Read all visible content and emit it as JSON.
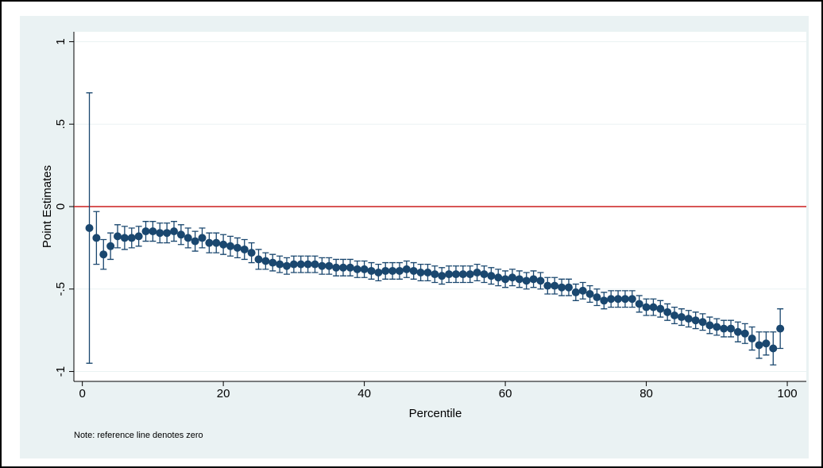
{
  "chart_data": {
    "type": "errorbar-scatter",
    "xlabel": "Percentile",
    "ylabel": "Point Estimates",
    "note": "Note: reference line denotes zero",
    "x": [
      1,
      2,
      3,
      4,
      5,
      6,
      7,
      8,
      9,
      10,
      11,
      12,
      13,
      14,
      15,
      16,
      17,
      18,
      19,
      20,
      21,
      22,
      23,
      24,
      25,
      26,
      27,
      28,
      29,
      30,
      31,
      32,
      33,
      34,
      35,
      36,
      37,
      38,
      39,
      40,
      41,
      42,
      43,
      44,
      45,
      46,
      47,
      48,
      49,
      50,
      51,
      52,
      53,
      54,
      55,
      56,
      57,
      58,
      59,
      60,
      61,
      62,
      63,
      64,
      65,
      66,
      67,
      68,
      69,
      70,
      71,
      72,
      73,
      74,
      75,
      76,
      77,
      78,
      79,
      80,
      81,
      82,
      83,
      84,
      85,
      86,
      87,
      88,
      89,
      90,
      91,
      92,
      93,
      94,
      95,
      96,
      97,
      98,
      99
    ],
    "series": [
      {
        "color": "#1a476f",
        "values": [
          -0.13,
          -0.19,
          -0.29,
          -0.24,
          -0.18,
          -0.19,
          -0.19,
          -0.18,
          -0.15,
          -0.15,
          -0.16,
          -0.16,
          -0.15,
          -0.17,
          -0.19,
          -0.21,
          -0.19,
          -0.22,
          -0.22,
          -0.23,
          -0.24,
          -0.25,
          -0.26,
          -0.28,
          -0.32,
          -0.33,
          -0.34,
          -0.35,
          -0.36,
          -0.35,
          -0.35,
          -0.35,
          -0.35,
          -0.36,
          -0.36,
          -0.37,
          -0.37,
          -0.37,
          -0.38,
          -0.38,
          -0.39,
          -0.4,
          -0.39,
          -0.39,
          -0.39,
          -0.38,
          -0.39,
          -0.4,
          -0.4,
          -0.41,
          -0.42,
          -0.41,
          -0.41,
          -0.41,
          -0.41,
          -0.4,
          -0.41,
          -0.42,
          -0.43,
          -0.44,
          -0.43,
          -0.44,
          -0.45,
          -0.44,
          -0.45,
          -0.48,
          -0.48,
          -0.49,
          -0.49,
          -0.52,
          -0.51,
          -0.53,
          -0.55,
          -0.57,
          -0.56,
          -0.56,
          -0.56,
          -0.56,
          -0.59,
          -0.61,
          -0.61,
          -0.62,
          -0.64,
          -0.66,
          -0.67,
          -0.68,
          -0.69,
          -0.7,
          -0.72,
          -0.73,
          -0.74,
          -0.74,
          -0.76,
          -0.77,
          -0.8,
          -0.84,
          -0.83,
          -0.86,
          -0.74
        ],
        "errors": [
          0.82,
          0.16,
          0.09,
          0.08,
          0.07,
          0.07,
          0.06,
          0.06,
          0.06,
          0.06,
          0.06,
          0.06,
          0.06,
          0.06,
          0.06,
          0.06,
          0.06,
          0.06,
          0.06,
          0.06,
          0.06,
          0.06,
          0.06,
          0.06,
          0.06,
          0.05,
          0.05,
          0.05,
          0.05,
          0.05,
          0.05,
          0.05,
          0.05,
          0.05,
          0.05,
          0.05,
          0.05,
          0.05,
          0.05,
          0.05,
          0.05,
          0.05,
          0.05,
          0.05,
          0.05,
          0.05,
          0.05,
          0.05,
          0.05,
          0.05,
          0.05,
          0.05,
          0.05,
          0.05,
          0.05,
          0.05,
          0.05,
          0.05,
          0.05,
          0.05,
          0.05,
          0.05,
          0.05,
          0.05,
          0.05,
          0.05,
          0.05,
          0.05,
          0.05,
          0.05,
          0.05,
          0.05,
          0.05,
          0.05,
          0.05,
          0.05,
          0.05,
          0.05,
          0.05,
          0.05,
          0.05,
          0.05,
          0.05,
          0.05,
          0.05,
          0.05,
          0.05,
          0.05,
          0.05,
          0.05,
          0.05,
          0.05,
          0.06,
          0.06,
          0.07,
          0.08,
          0.07,
          0.1,
          0.12
        ]
      }
    ],
    "refline": {
      "value": 0,
      "color": "#cc1f1f"
    },
    "xlim": [
      -1.2,
      102.7
    ],
    "xticks": [
      0,
      20,
      40,
      60,
      80,
      100
    ],
    "ylim": [
      -1.06,
      1.06
    ],
    "yticks": [
      -1,
      {
        "value": -0.5,
        "label": "-.5"
      },
      0,
      {
        "value": 0.5,
        "label": ".5"
      },
      1
    ],
    "grid": true
  }
}
